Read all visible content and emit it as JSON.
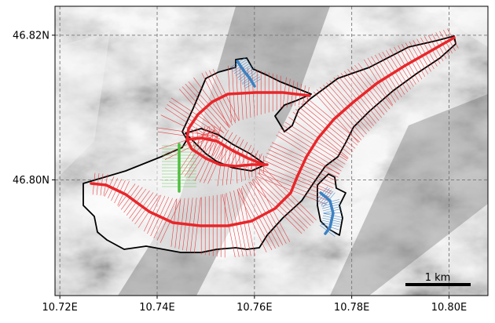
{
  "map": {
    "type": "glacier-flowline-map",
    "extent": {
      "lon": [
        10.719,
        10.808
      ],
      "lat": [
        46.784,
        46.824
      ]
    },
    "x_ticks": [
      {
        "value": 10.72,
        "label": "10.72E"
      },
      {
        "value": 10.74,
        "label": "10.74E"
      },
      {
        "value": 10.76,
        "label": "10.76E"
      },
      {
        "value": 10.78,
        "label": "10.78E"
      },
      {
        "value": 10.8,
        "label": "10.80E"
      }
    ],
    "y_ticks": [
      {
        "value": 46.82,
        "label": "46.82N"
      },
      {
        "value": 46.8,
        "label": "46.80N"
      }
    ],
    "grid": true,
    "scalebar": {
      "label": "1 km"
    },
    "colors": {
      "flowline": "#e8262a",
      "tributary_blue": "#3c82c2",
      "tributary_green": "#4fbf3f",
      "outline": "#000000",
      "grid": "#777777",
      "hillshade_light": "#f2f2f2",
      "hillshade_dark": "#6a6a6a"
    }
  }
}
